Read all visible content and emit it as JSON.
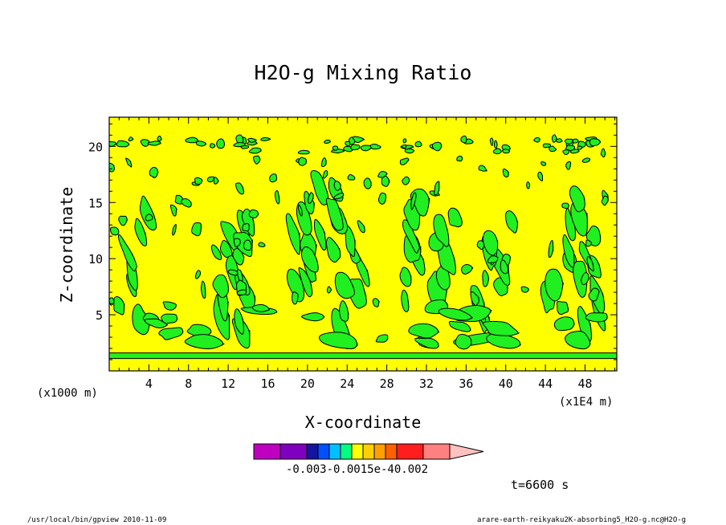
{
  "chart_data": {
    "type": "heatmap",
    "title": "H2O-g Mixing Ratio",
    "xlabel": "X-coordinate",
    "ylabel": "Z-coordinate",
    "x_unit": "(x1E4 m)",
    "y_unit": "(x1000 m)",
    "x_ticks": [
      4,
      8,
      12,
      16,
      20,
      24,
      28,
      32,
      36,
      40,
      44,
      48
    ],
    "y_ticks": [
      5,
      10,
      15,
      20
    ],
    "xlim": [
      0,
      51.2
    ],
    "ylim": [
      0,
      22.6
    ],
    "colorbar": {
      "orientation": "horizontal",
      "colors": [
        "#c000c0",
        "#8000c0",
        "#1414a0",
        "#0050ff",
        "#00c0ff",
        "#00ff80",
        "#ffff00",
        "#ffd000",
        "#ffa000",
        "#ff6000",
        "#ff1e1e",
        "#ff8080",
        "#ffc0c0"
      ],
      "tick_labels": "-0.003-0.0015e-40.002"
    },
    "fill_colors": {
      "background": "#ffff00",
      "patches": "#20f020",
      "outline": "#000000"
    }
  },
  "annotations": {
    "timestamp": "t=6600 s",
    "footer_left": "/usr/local/bin/gpview   2010-11-09",
    "footer_right": "arare-earth-reikyaku2K-absorbing5_H2O-g.nc@H2O-g"
  }
}
